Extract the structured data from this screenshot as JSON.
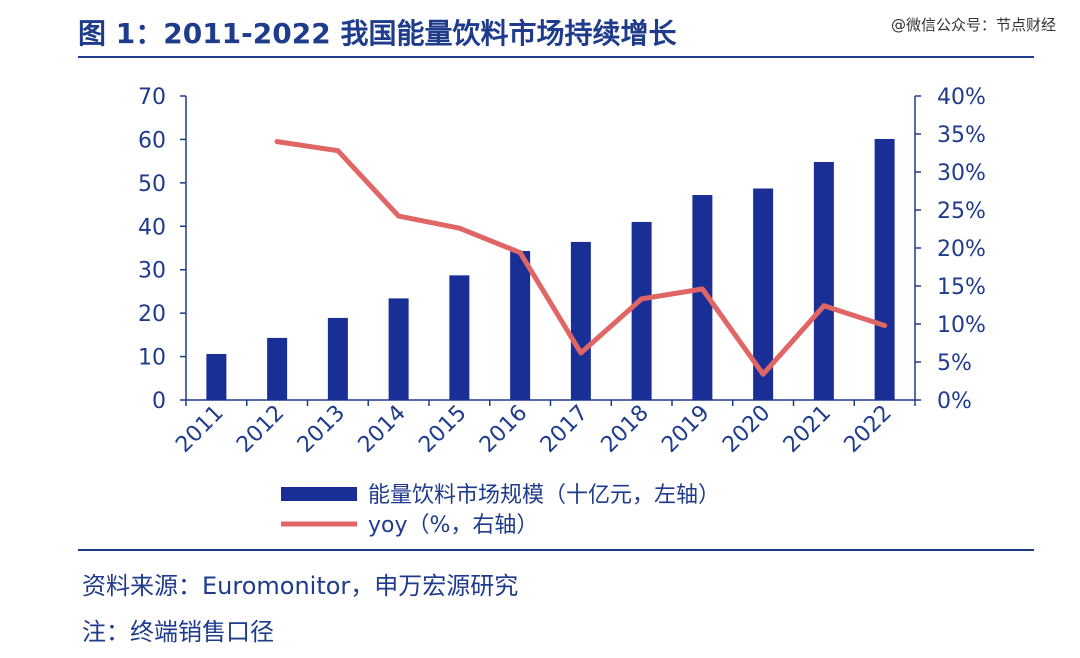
{
  "header": {
    "title": "图 1：2011-2022 我国能量饮料市场持续增长",
    "watermark": "@微信公众号：节点财经"
  },
  "footer": {
    "source": "资料来源：Euromonitor，申万宏源研究",
    "note": "注：终端销售口径"
  },
  "colors": {
    "bar": "#1a2f96",
    "line": "#e06666",
    "axis": "#1f3b8c",
    "text": "#1f3b8c"
  },
  "chart_data": {
    "type": "bar",
    "categories": [
      "2011",
      "2012",
      "2013",
      "2014",
      "2015",
      "2016",
      "2017",
      "2018",
      "2019",
      "2020",
      "2021",
      "2022"
    ],
    "series": [
      {
        "name": "能量饮料市场规模（十亿元，左轴）",
        "type": "bar",
        "axis": "left",
        "values": [
          10.6,
          14.3,
          18.9,
          23.4,
          28.7,
          34.3,
          36.4,
          41.0,
          47.2,
          48.7,
          54.8,
          60.1
        ]
      },
      {
        "name": "yoy（%，右轴）",
        "type": "line",
        "axis": "right",
        "values": [
          null,
          34.0,
          32.8,
          24.2,
          22.6,
          19.4,
          6.2,
          13.3,
          14.6,
          3.4,
          12.4,
          9.8
        ]
      }
    ],
    "y_left": {
      "range": [
        0,
        70
      ],
      "ticks": [
        "0",
        "10",
        "20",
        "30",
        "40",
        "50",
        "60",
        "70"
      ]
    },
    "y_right": {
      "range": [
        0,
        40
      ],
      "ticks": [
        "0%",
        "5%",
        "10%",
        "15%",
        "20%",
        "25%",
        "30%",
        "35%",
        "40%"
      ]
    },
    "legend_placement": "bottom",
    "grid": false
  }
}
